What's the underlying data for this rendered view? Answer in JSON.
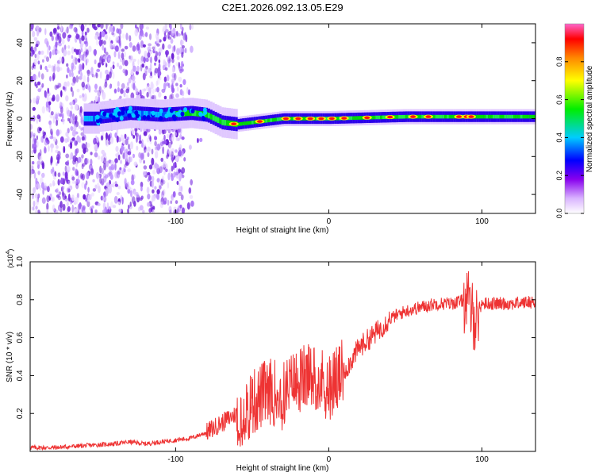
{
  "title": "C2E1.2026.092.13.05.E29",
  "chart_data": [
    {
      "type": "heatmap",
      "xlabel": "Height of straight line (km)",
      "ylabel": "Frequency (Hz)",
      "xlim": [
        -195,
        135
      ],
      "ylim": [
        -50,
        50
      ],
      "xticks": [
        -100,
        0,
        100
      ],
      "yticks": [
        -40,
        -20,
        0,
        20,
        40
      ],
      "ticklabels_x": [
        "-100",
        "0",
        "100"
      ],
      "ticklabels_y": [
        "-40",
        "-20",
        "0",
        "20",
        "40"
      ],
      "colorbar": {
        "label": "Normalized spectral amplitude",
        "range": [
          0,
          1
        ],
        "ticks": [
          "0.0",
          "0.2",
          "0.4",
          "0.6",
          "0.8"
        ],
        "tick_values": [
          0,
          0.2,
          0.4,
          0.6,
          0.8
        ]
      },
      "ridge": [
        {
          "x": -150,
          "y": 1
        },
        {
          "x": -130,
          "y": 3
        },
        {
          "x": -110,
          "y": 2
        },
        {
          "x": -90,
          "y": 3
        },
        {
          "x": -80,
          "y": 2
        },
        {
          "x": -70,
          "y": -2
        },
        {
          "x": -60,
          "y": -3
        },
        {
          "x": -50,
          "y": -2
        },
        {
          "x": -40,
          "y": -1
        },
        {
          "x": -30,
          "y": 0
        },
        {
          "x": 0,
          "y": 0
        },
        {
          "x": 50,
          "y": 1
        },
        {
          "x": 100,
          "y": 1
        },
        {
          "x": 135,
          "y": 1
        }
      ]
    },
    {
      "type": "line",
      "xlabel": "Height of straight line (km)",
      "ylabel": "SNR (10 * v/v)",
      "yscale_label": "(x10",
      "yscale_exp": "4",
      "xlim": [
        -195,
        135
      ],
      "ylim": [
        0,
        1.0
      ],
      "xticks": [
        -100,
        0,
        100
      ],
      "yticks": [
        0.2,
        0.4,
        0.6,
        0.8,
        1.0
      ],
      "ticklabels_x": [
        "-100",
        "0",
        "100"
      ],
      "ticklabels_y": [
        "0.2",
        "0.4",
        "0.6",
        "0.8",
        "1.0"
      ],
      "color": "#ee3333",
      "series": [
        {
          "name": "SNR",
          "x": [
            -195,
            -180,
            -160,
            -140,
            -130,
            -120,
            -100,
            -90,
            -80,
            -70,
            -60,
            -50,
            -40,
            -30,
            -20,
            -10,
            0,
            10,
            20,
            30,
            40,
            50,
            60,
            70,
            80,
            90,
            95,
            100,
            110,
            120,
            135
          ],
          "y": [
            0.02,
            0.02,
            0.03,
            0.04,
            0.05,
            0.04,
            0.06,
            0.07,
            0.1,
            0.15,
            0.2,
            0.25,
            0.32,
            0.3,
            0.38,
            0.4,
            0.35,
            0.42,
            0.55,
            0.62,
            0.7,
            0.74,
            0.76,
            0.78,
            0.78,
            0.8,
            0.7,
            0.78,
            0.78,
            0.78,
            0.79
          ]
        }
      ]
    }
  ],
  "colors": {
    "line": "#ee3333",
    "colormap": [
      "#ffffff",
      "#8800ee",
      "#0000ff",
      "#00ccff",
      "#00ee00",
      "#ffff00",
      "#ff8800",
      "#ff0000",
      "#ff66cc"
    ]
  }
}
